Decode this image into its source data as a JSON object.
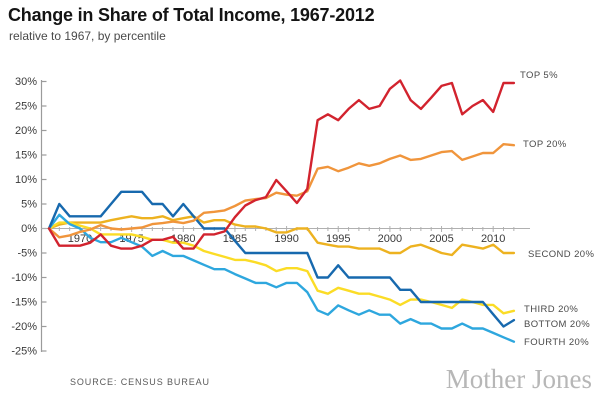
{
  "header": {
    "title": "Change in Share of Total Income, 1967-2012",
    "subtitle": "relative to 1967, by percentile"
  },
  "footer": {
    "source": "SOURCE: CENSUS BUREAU",
    "brand": "Mother Jones"
  },
  "chart_data": {
    "type": "line",
    "title": "Change in Share of Total Income, 1967-2012",
    "subtitle": "relative to 1967, by percentile",
    "xlabel": "",
    "ylabel": "",
    "x_range": [
      1967,
      2012
    ],
    "ylim": [
      -25,
      30
    ],
    "grid": "zero-baseline-only",
    "legend_position": "right-of-line-ends",
    "axis_color": "#9b9b9b",
    "baseline_color": "#b0b0b0",
    "x_tick_values": [
      1970,
      1975,
      1980,
      1985,
      1990,
      1995,
      2000,
      2005,
      2010
    ],
    "x_tick_labels": [
      "1970",
      "1975",
      "1980",
      "1985",
      "1990",
      "1995",
      "2000",
      "2005",
      "2010"
    ],
    "y_tick_values": [
      30,
      25,
      20,
      15,
      10,
      5,
      0,
      -5,
      -10,
      -15,
      -20,
      -25
    ],
    "y_tick_labels": [
      "30%",
      "25%",
      "20%",
      "15%",
      "10%",
      "5%",
      "0%",
      "-5%",
      "-10%",
      "-15%",
      "-20%",
      "-25%"
    ],
    "x": [
      1967,
      1968,
      1969,
      1970,
      1971,
      1972,
      1973,
      1974,
      1975,
      1976,
      1977,
      1978,
      1979,
      1980,
      1981,
      1982,
      1983,
      1984,
      1985,
      1986,
      1987,
      1988,
      1989,
      1990,
      1991,
      1992,
      1993,
      1994,
      1995,
      1996,
      1997,
      1998,
      1999,
      2000,
      2001,
      2002,
      2003,
      2004,
      2005,
      2006,
      2007,
      2008,
      2009,
      2010,
      2011,
      2012
    ],
    "series": [
      {
        "id": "top-5",
        "name": "TOP 5%",
        "color": "#d2232e",
        "values": [
          0,
          -3.5,
          -3.5,
          -3.5,
          -2.9,
          -1.2,
          -3.5,
          -4.1,
          -4.1,
          -3.5,
          -2.3,
          -2.3,
          -1.7,
          -4.1,
          -4.1,
          -1.2,
          -1.2,
          -0.6,
          2.3,
          4.7,
          5.8,
          6.4,
          9.9,
          7.6,
          5.2,
          8.1,
          22.1,
          23.3,
          22.1,
          24.4,
          26.2,
          24.4,
          25.0,
          28.5,
          30.2,
          26.2,
          24.4,
          26.7,
          29.1,
          29.7,
          23.3,
          25.0,
          26.2,
          23.8,
          29.7,
          29.7
        ]
      },
      {
        "id": "top-20",
        "name": "TOP 20%",
        "color": "#f0953c",
        "values": [
          0,
          -1.8,
          -1.4,
          -0.7,
          -0.2,
          0.7,
          0.0,
          -0.2,
          0.0,
          0.2,
          0.9,
          1.1,
          1.4,
          1.1,
          1.6,
          3.2,
          3.4,
          3.7,
          4.6,
          5.7,
          6.0,
          6.2,
          7.3,
          6.9,
          6.7,
          7.6,
          12.2,
          12.6,
          11.7,
          12.4,
          13.3,
          12.8,
          13.3,
          14.2,
          14.9,
          14.0,
          14.2,
          14.9,
          15.6,
          15.8,
          14.0,
          14.7,
          15.4,
          15.4,
          17.2,
          17.0
        ]
      },
      {
        "id": "second-20",
        "name": "SECOND 20%",
        "color": "#edb220",
        "values": [
          0,
          0.8,
          1.2,
          1.2,
          1.2,
          1.2,
          1.7,
          2.1,
          2.5,
          2.1,
          2.1,
          2.5,
          1.7,
          2.1,
          2.5,
          1.2,
          1.7,
          1.7,
          0.8,
          0.4,
          0.4,
          0.0,
          -0.8,
          -0.8,
          0.0,
          0.0,
          -2.9,
          -3.3,
          -3.7,
          -3.7,
          -4.1,
          -4.1,
          -4.1,
          -5.0,
          -5.0,
          -3.7,
          -3.3,
          -4.1,
          -5.0,
          -5.4,
          -3.3,
          -3.7,
          -4.1,
          -3.3,
          -5.0,
          -5.0
        ]
      },
      {
        "id": "third-20",
        "name": "THIRD 20%",
        "color": "#fbdc26",
        "values": [
          0,
          1.2,
          1.2,
          0.6,
          0.0,
          -1.2,
          -1.2,
          -1.2,
          -1.2,
          -1.7,
          -2.3,
          -2.3,
          -2.9,
          -2.9,
          -3.5,
          -4.6,
          -5.2,
          -5.8,
          -6.4,
          -6.4,
          -6.9,
          -7.5,
          -8.7,
          -8.1,
          -8.1,
          -8.7,
          -12.7,
          -13.3,
          -12.1,
          -12.7,
          -13.3,
          -13.3,
          -13.9,
          -14.5,
          -15.6,
          -14.5,
          -14.5,
          -15.0,
          -15.6,
          -16.2,
          -14.5,
          -15.0,
          -15.6,
          -15.6,
          -17.3,
          -16.8
        ]
      },
      {
        "id": "bottom-20",
        "name": "BOTTOM 20%",
        "color": "#1769ae",
        "values": [
          0,
          5.0,
          2.5,
          2.5,
          2.5,
          2.5,
          5.0,
          7.5,
          7.5,
          7.5,
          5.0,
          5.0,
          2.5,
          5.0,
          2.5,
          0.0,
          0.0,
          0.0,
          -2.5,
          -5.0,
          -5.0,
          -5.0,
          -5.0,
          -5.0,
          -5.0,
          -5.0,
          -10.0,
          -10.0,
          -7.5,
          -10.0,
          -10.0,
          -10.0,
          -10.0,
          -10.0,
          -12.5,
          -12.5,
          -15.0,
          -15.0,
          -15.0,
          -15.0,
          -15.0,
          -15.0,
          -15.0,
          -17.5,
          -20.0,
          -18.7
        ]
      },
      {
        "id": "fourth-20",
        "name": "FOURTH 20%",
        "color": "#2ea7de",
        "values": [
          0,
          2.8,
          0.9,
          0.0,
          -1.9,
          -2.8,
          -2.8,
          -1.9,
          -2.8,
          -3.7,
          -5.6,
          -4.6,
          -5.6,
          -5.6,
          -6.5,
          -7.4,
          -8.3,
          -8.3,
          -9.3,
          -10.2,
          -11.1,
          -11.1,
          -12.0,
          -11.1,
          -11.1,
          -13.0,
          -16.7,
          -17.6,
          -15.7,
          -16.7,
          -17.6,
          -16.7,
          -17.6,
          -17.6,
          -19.4,
          -18.5,
          -19.4,
          -19.4,
          -20.4,
          -20.4,
          -19.4,
          -20.4,
          -20.4,
          -21.3,
          -22.2,
          -23.1
        ]
      }
    ]
  }
}
